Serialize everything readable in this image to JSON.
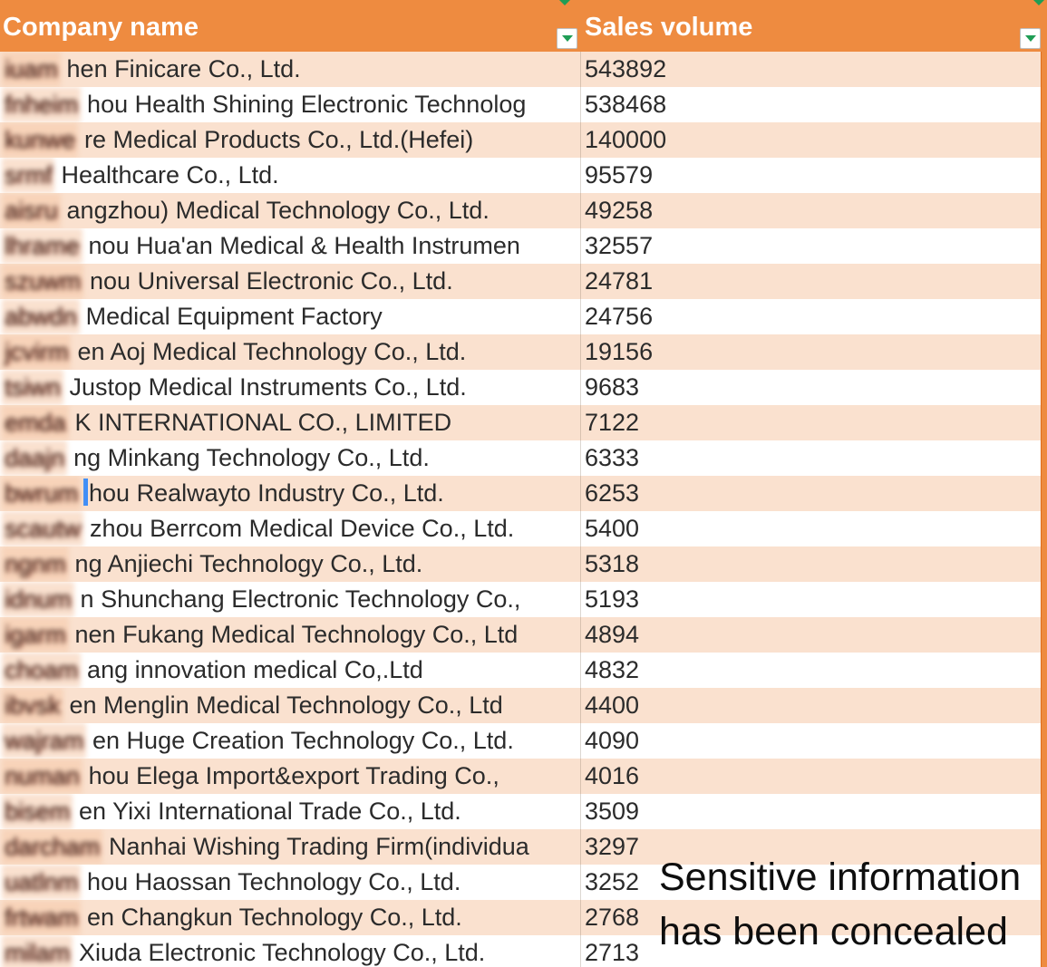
{
  "table": {
    "columns": [
      {
        "label": "Company name"
      },
      {
        "label": "Sales volume"
      }
    ],
    "rows": [
      {
        "concealed": "iuam",
        "name": "hen Finicare Co., Ltd.",
        "volume": "543892"
      },
      {
        "concealed": "fnheim",
        "name": "hou Health Shining Electronic Technolog",
        "volume": "538468"
      },
      {
        "concealed": "kunwe",
        "name": "re Medical Products Co., Ltd.(Hefei)",
        "volume": "140000"
      },
      {
        "concealed": "srmf",
        "name": "Healthcare Co., Ltd.",
        "volume": "95579"
      },
      {
        "concealed": "aisru",
        "name": "angzhou) Medical Technology Co., Ltd.",
        "volume": "49258"
      },
      {
        "concealed": "lhrame",
        "name": "nou Hua'an Medical & Health Instrumen",
        "volume": "32557"
      },
      {
        "concealed": "szuwm",
        "name": "nou Universal Electronic Co., Ltd.",
        "volume": "24781"
      },
      {
        "concealed": "abwdn",
        "name": "Medical Equipment Factory",
        "volume": "24756"
      },
      {
        "concealed": "jcvirm",
        "name": "en Aoj Medical Technology Co., Ltd.",
        "volume": "19156"
      },
      {
        "concealed": "tsiwn",
        "name": "Justop Medical Instruments Co., Ltd.",
        "volume": "9683"
      },
      {
        "concealed": "emda",
        "name": "K INTERNATIONAL CO., LIMITED",
        "volume": "7122"
      },
      {
        "concealed": "daajn",
        "name": "ng Minkang Technology Co., Ltd.",
        "volume": "6333"
      },
      {
        "concealed": "bwrum",
        "name": "hou Realwayto Industry Co., Ltd.",
        "volume": "6253",
        "cursor": true
      },
      {
        "concealed": "scautw",
        "name": "zhou Berrcom Medical Device Co., Ltd.",
        "volume": "5400"
      },
      {
        "concealed": "ngnm",
        "name": "ng Anjiechi Technology Co., Ltd.",
        "volume": "5318"
      },
      {
        "concealed": "idnum",
        "name": "n Shunchang Electronic Technology Co.,",
        "volume": "5193"
      },
      {
        "concealed": "igarm",
        "name": "nen Fukang Medical Technology Co., Ltd",
        "volume": "4894"
      },
      {
        "concealed": "choam",
        "name": "ang innovation medical Co,.Ltd",
        "volume": "4832"
      },
      {
        "concealed": "ibvsk",
        "name": "en Menglin Medical Technology Co., Ltd",
        "volume": "4400"
      },
      {
        "concealed": "wajram",
        "name": "en Huge Creation Technology Co., Ltd.",
        "volume": "4090"
      },
      {
        "concealed": "numan",
        "name": "hou Elega Import&export Trading Co.,",
        "volume": "4016"
      },
      {
        "concealed": "bisem",
        "name": "en Yixi International Trade Co., Ltd.",
        "volume": "3509"
      },
      {
        "concealed": "darcham",
        "name": "Nanhai Wishing Trading Firm(individua",
        "volume": "3297"
      },
      {
        "concealed": "uatlnm",
        "name": "hou Haossan Technology Co., Ltd.",
        "volume": "3252"
      },
      {
        "concealed": "frtwam",
        "name": "en Changkun Technology Co., Ltd.",
        "volume": "2768"
      },
      {
        "concealed": "milam",
        "name": "Xiuda Electronic Technology Co., Ltd.",
        "volume": "2713"
      }
    ]
  },
  "overlay": {
    "line1": "Sensitive information",
    "line2": "has been concealed"
  },
  "colors": {
    "header_orange": "#EE8B40",
    "row_alt_peach": "#FAE1CF",
    "row_white": "#FFFFFF",
    "filter_arrow_green": "#1F9D55",
    "text": "#2B2B2B",
    "overlay_text": "#0E0E0E"
  },
  "icons": {
    "filter": "filter-dropdown-icon"
  }
}
